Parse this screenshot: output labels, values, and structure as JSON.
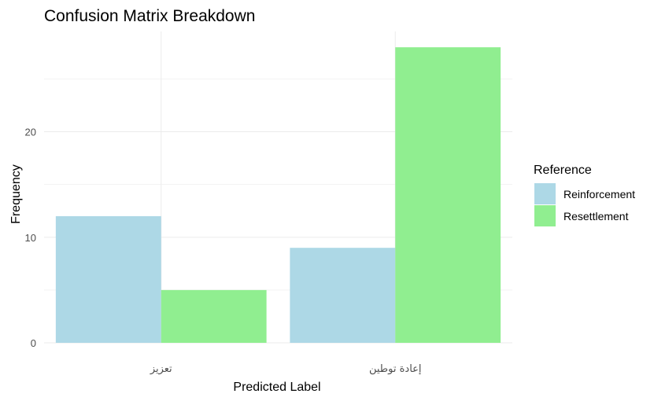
{
  "chart_data": {
    "type": "bar",
    "title": "Confusion Matrix Breakdown",
    "xlabel": "Predicted Label",
    "ylabel": "Frequency",
    "categories": [
      "تعزيز",
      "إعادة توطين"
    ],
    "series": [
      {
        "name": "Reinforcement",
        "values": [
          12,
          9
        ],
        "color": "#add8e6"
      },
      {
        "name": "Resettlement",
        "values": [
          5,
          28
        ],
        "color": "#90ee90"
      }
    ],
    "ylim": [
      0,
      29.5
    ],
    "yticks": [
      0,
      10,
      20
    ],
    "grid": true,
    "legend": {
      "title": "Reference",
      "position": "right"
    }
  }
}
